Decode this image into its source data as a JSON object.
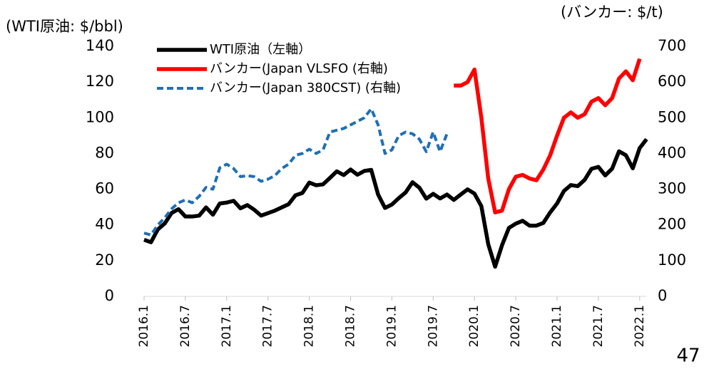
{
  "chart_data": {
    "type": "line",
    "y_unit_label": "(WTI原油: $/bbl)",
    "y2_unit_label": "(バンカー: $/t)",
    "page_number": "47",
    "categories": [
      "2016.1",
      null,
      null,
      null,
      null,
      null,
      "2016.7",
      null,
      null,
      null,
      null,
      null,
      "2017.1",
      null,
      null,
      null,
      null,
      null,
      "2017.7",
      null,
      null,
      null,
      null,
      null,
      "2018.1",
      null,
      null,
      null,
      null,
      null,
      "2018.7",
      null,
      null,
      null,
      null,
      null,
      "2019.1",
      null,
      null,
      null,
      null,
      null,
      "2019.7",
      null,
      null,
      null,
      null,
      null,
      "2020.1",
      null,
      null,
      null,
      null,
      null,
      "2020.7",
      null,
      null,
      null,
      null,
      null,
      "2021.1",
      null,
      null,
      null,
      null,
      null,
      "2021.7",
      null,
      null,
      null,
      null,
      null,
      "2022.1",
      null
    ],
    "ylim": [
      0,
      140
    ],
    "yticks": [
      0,
      20,
      40,
      60,
      80,
      100,
      120,
      140
    ],
    "y2lim": [
      0,
      700
    ],
    "y2ticks": [
      0,
      100,
      200,
      300,
      400,
      500,
      600,
      700
    ],
    "series": [
      {
        "name": "WTI原油（左軸）",
        "color": "#000000",
        "dash": false,
        "values": [
          31.7,
          30.3,
          37.5,
          40.8,
          46.7,
          48.8,
          44.7,
          44.7,
          45.2,
          49.8,
          45.7,
          52.0,
          52.5,
          53.5,
          49.3,
          51.1,
          48.5,
          45.2,
          46.6,
          48.0,
          49.8,
          51.6,
          56.6,
          57.9,
          63.7,
          62.2,
          62.7,
          66.3,
          70.0,
          67.9,
          71.0,
          68.1,
          70.2,
          70.8,
          57.0,
          49.5,
          51.4,
          55.0,
          58.2,
          63.9,
          60.8,
          54.7,
          57.4,
          54.8,
          57.0,
          54.0,
          57.0,
          59.9,
          57.5,
          50.5,
          29.2,
          16.6,
          28.6,
          38.3,
          40.7,
          42.3,
          39.6,
          39.6,
          41.1,
          47.0,
          52.0,
          59.0,
          62.3,
          61.7,
          65.2,
          71.4,
          72.5,
          67.7,
          71.5,
          81.2,
          79.0,
          71.7,
          83.0,
          88.0
        ]
      },
      {
        "name": "バンカー(Japan VLSFO (右軸)",
        "color": "#ff0000",
        "dash": false,
        "axis": "y2",
        "values": [
          null,
          null,
          null,
          null,
          null,
          null,
          null,
          null,
          null,
          null,
          null,
          null,
          null,
          null,
          null,
          null,
          null,
          null,
          null,
          null,
          null,
          null,
          null,
          null,
          null,
          null,
          null,
          null,
          null,
          null,
          null,
          null,
          null,
          null,
          null,
          null,
          null,
          null,
          null,
          null,
          null,
          null,
          null,
          null,
          null,
          590,
          590,
          600,
          635,
          500,
          330,
          235,
          240,
          300,
          335,
          340,
          330,
          325,
          355,
          395,
          450,
          500,
          515,
          500,
          510,
          545,
          555,
          535,
          555,
          610,
          630,
          605,
          665,
          null
        ]
      },
      {
        "name": "バンカー(Japan 380CST) (右軸)",
        "color": "#1f6fb5",
        "dash": true,
        "axis": "y2",
        "values": [
          177,
          172,
          200,
          220,
          245,
          262,
          270,
          262,
          280,
          305,
          300,
          360,
          370,
          358,
          335,
          338,
          335,
          322,
          328,
          338,
          358,
          370,
          395,
          400,
          412,
          400,
          410,
          460,
          465,
          470,
          480,
          490,
          500,
          525,
          480,
          400,
          410,
          450,
          460,
          455,
          440,
          405,
          460,
          405,
          455,
          null,
          null,
          null,
          null,
          null,
          null,
          null,
          null,
          null,
          null,
          null,
          null,
          null,
          null,
          null,
          null,
          null,
          null,
          null,
          null,
          null,
          null,
          null,
          null,
          null,
          null,
          null,
          null,
          null
        ]
      }
    ]
  }
}
